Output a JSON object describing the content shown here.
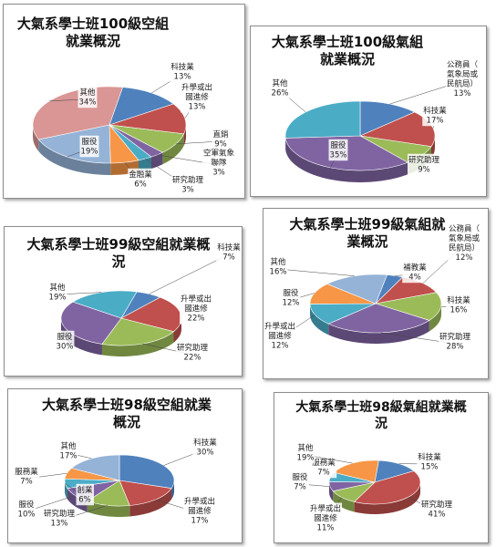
{
  "chart_data": [
    {
      "type": "pie",
      "title": "大氣系學士班100級空組就業概況",
      "slices": [
        {
          "label": "科技業",
          "percent": "13%",
          "value": 13,
          "color": "#4f81bd"
        },
        {
          "label": "升學或出國進修",
          "percent": "13%",
          "value": 13,
          "color": "#c0504d"
        },
        {
          "label": "直銷",
          "percent": "9%",
          "value": 9,
          "color": "#9bbb59"
        },
        {
          "label": "空軍氣象聯隊",
          "percent": "3%",
          "value": 3,
          "color": "#8064a2"
        },
        {
          "label": "研究助理",
          "percent": "3%",
          "value": 3,
          "color": "#4bacc6"
        },
        {
          "label": "金融業",
          "percent": "6%",
          "value": 6,
          "color": "#f79646"
        },
        {
          "label": "服役",
          "percent": "19%",
          "value": 19,
          "color": "#95b3d7"
        },
        {
          "label": "其他",
          "percent": "34%",
          "value": 34,
          "color": "#d99694"
        }
      ]
    },
    {
      "type": "pie",
      "title": "大氣系學士班100級氣組就業概況",
      "slices": [
        {
          "label": "公務員（氣象局或民航局）",
          "percent": "13%",
          "value": 13,
          "color": "#4f81bd"
        },
        {
          "label": "科技業",
          "percent": "17%",
          "value": 17,
          "color": "#c0504d"
        },
        {
          "label": "研究助理",
          "percent": "9%",
          "value": 9,
          "color": "#9bbb59"
        },
        {
          "label": "服役",
          "percent": "35%",
          "value": 35,
          "color": "#8064a2"
        },
        {
          "label": "其他",
          "percent": "26%",
          "value": 26,
          "color": "#4bacc6"
        }
      ]
    },
    {
      "type": "pie",
      "title": "大氣系學士班99級空組就業概況",
      "slices": [
        {
          "label": "科技業",
          "percent": "7%",
          "value": 7,
          "color": "#4f81bd"
        },
        {
          "label": "升學或出國進修",
          "percent": "22%",
          "value": 22,
          "color": "#c0504d"
        },
        {
          "label": "研究助理",
          "percent": "22%",
          "value": 22,
          "color": "#9bbb59"
        },
        {
          "label": "服役",
          "percent": "30%",
          "value": 30,
          "color": "#8064a2"
        },
        {
          "label": "其他",
          "percent": "19%",
          "value": 19,
          "color": "#4bacc6"
        }
      ]
    },
    {
      "type": "pie",
      "title": "大氣系學士班99級氣組就業概況",
      "slices": [
        {
          "label": "補教業",
          "percent": "4%",
          "value": 4,
          "color": "#4f81bd"
        },
        {
          "label": "公務員（氣象局或民航局）",
          "percent": "12%",
          "value": 12,
          "color": "#c0504d"
        },
        {
          "label": "科技業",
          "percent": "16%",
          "value": 16,
          "color": "#9bbb59"
        },
        {
          "label": "研究助理",
          "percent": "28%",
          "value": 28,
          "color": "#8064a2"
        },
        {
          "label": "升學或出國進修",
          "percent": "12%",
          "value": 12,
          "color": "#4bacc6"
        },
        {
          "label": "服役",
          "percent": "12%",
          "value": 12,
          "color": "#f79646"
        },
        {
          "label": "其他",
          "percent": "16%",
          "value": 16,
          "color": "#95b3d7"
        }
      ]
    },
    {
      "type": "pie",
      "title": "大氣系學士班98級空組就業概況",
      "slices": [
        {
          "label": "科技業",
          "percent": "30%",
          "value": 30,
          "color": "#4f81bd"
        },
        {
          "label": "升學或出國進修",
          "percent": "17%",
          "value": 17,
          "color": "#c0504d"
        },
        {
          "label": "研究助理",
          "percent": "13%",
          "value": 13,
          "color": "#9bbb59"
        },
        {
          "label": "服役",
          "percent": "10%",
          "value": 10,
          "color": "#8064a2"
        },
        {
          "label": "創業",
          "percent": "6%",
          "value": 6,
          "color": "#4bacc6"
        },
        {
          "label": "服務業",
          "percent": "7%",
          "value": 7,
          "color": "#f79646"
        },
        {
          "label": "其他",
          "percent": "17%",
          "value": 17,
          "color": "#95b3d7"
        }
      ]
    },
    {
      "type": "pie",
      "title": "大氣系學士班98級氣組就業概況",
      "slices": [
        {
          "label": "科技業",
          "percent": "15%",
          "value": 15,
          "color": "#4f81bd"
        },
        {
          "label": "研究助理",
          "percent": "41%",
          "value": 41,
          "color": "#c0504d"
        },
        {
          "label": "升學或出國進修",
          "percent": "11%",
          "value": 11,
          "color": "#9bbb59"
        },
        {
          "label": "服役",
          "percent": "7%",
          "value": 7,
          "color": "#8064a2"
        },
        {
          "label": "服務業",
          "percent": "7%",
          "value": 7,
          "color": "#4bacc6"
        },
        {
          "label": "其他",
          "percent": "19%",
          "value": 19,
          "color": "#f79646"
        }
      ]
    }
  ]
}
